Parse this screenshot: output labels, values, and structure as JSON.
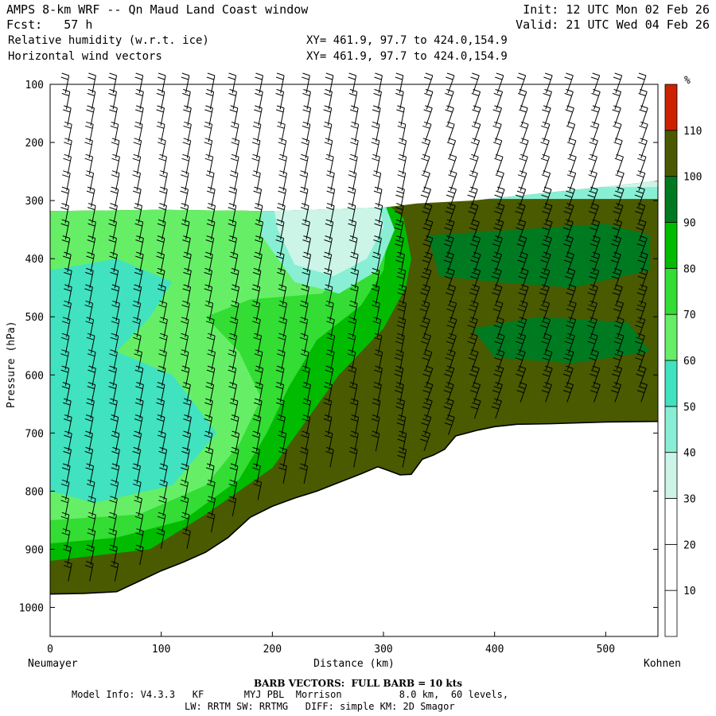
{
  "header": {
    "title": "AMPS 8-km WRF -- Qn Maud Land Coast window",
    "fcst_label": "Fcst:",
    "fcst_value": "57 h",
    "init": "Init: 12 UTC Mon 02 Feb 26",
    "valid": "Valid: 21 UTC Wed 04 Feb 26",
    "field1": "Relative humidity (w.r.t. ice)",
    "field2": "Horizontal wind vectors",
    "xy1": "XY= 461.9, 97.7 to 424.0,154.9",
    "xy2": "XY= 461.9, 97.7 to 424.0,154.9"
  },
  "chart_data": {
    "type": "cross-section-contour",
    "ylabel": "Pressure (hPa)",
    "xlabel": "Distance (km)",
    "x_start_label": "Neumayer",
    "x_end_label": "Kohnen",
    "x_ticks": [
      0,
      100,
      200,
      300,
      400,
      500
    ],
    "y_ticks": [
      100,
      200,
      300,
      400,
      500,
      600,
      700,
      800,
      900,
      1000
    ],
    "xlim": [
      0,
      547
    ],
    "ylim": [
      1050,
      100
    ],
    "colorbar": {
      "unit": "%",
      "levels": [
        10,
        20,
        30,
        40,
        50,
        60,
        70,
        80,
        90,
        100,
        110
      ],
      "colors": [
        "#ffffff",
        "#ffffff",
        "#ffffff",
        "#ccf5e8",
        "#88efd4",
        "#40e2c0",
        "#66ef66",
        "#33dd33",
        "#00bb00",
        "#007a20",
        "#4a5a00",
        "#cc2200"
      ]
    },
    "terrain_pressure": [
      {
        "x": 0,
        "p": 977
      },
      {
        "x": 30,
        "p": 976
      },
      {
        "x": 60,
        "p": 973
      },
      {
        "x": 80,
        "p": 955
      },
      {
        "x": 100,
        "p": 937
      },
      {
        "x": 120,
        "p": 922
      },
      {
        "x": 140,
        "p": 905
      },
      {
        "x": 160,
        "p": 880
      },
      {
        "x": 180,
        "p": 845
      },
      {
        "x": 200,
        "p": 826
      },
      {
        "x": 220,
        "p": 812
      },
      {
        "x": 240,
        "p": 800
      },
      {
        "x": 260,
        "p": 785
      },
      {
        "x": 280,
        "p": 770
      },
      {
        "x": 295,
        "p": 758
      },
      {
        "x": 305,
        "p": 765
      },
      {
        "x": 315,
        "p": 772
      },
      {
        "x": 325,
        "p": 771
      },
      {
        "x": 335,
        "p": 745
      },
      {
        "x": 345,
        "p": 738
      },
      {
        "x": 355,
        "p": 728
      },
      {
        "x": 365,
        "p": 705
      },
      {
        "x": 385,
        "p": 695
      },
      {
        "x": 400,
        "p": 689
      },
      {
        "x": 420,
        "p": 685
      },
      {
        "x": 450,
        "p": 684
      },
      {
        "x": 500,
        "p": 681
      },
      {
        "x": 547,
        "p": 680
      }
    ],
    "moisture_top_pressure": [
      {
        "x": 0,
        "p": 318
      },
      {
        "x": 100,
        "p": 316
      },
      {
        "x": 200,
        "p": 318
      },
      {
        "x": 300,
        "p": 312
      },
      {
        "x": 330,
        "p": 305
      },
      {
        "x": 380,
        "p": 300
      },
      {
        "x": 420,
        "p": 292
      },
      {
        "x": 460,
        "p": 284
      },
      {
        "x": 500,
        "p": 276
      },
      {
        "x": 547,
        "p": 266
      }
    ],
    "barb_note": "Full barb = 10 kts"
  },
  "footer": {
    "barb": "BARB VECTORS:  FULL BARB = 10 kts",
    "model_line": "Model Info: V4.3.3   KF       MYJ PBL  Morrison          8.0 km,  60 levels,",
    "phys_line": "LW: RRTM SW: RRTMG   DIFF: simple KM: 2D Smagor"
  }
}
